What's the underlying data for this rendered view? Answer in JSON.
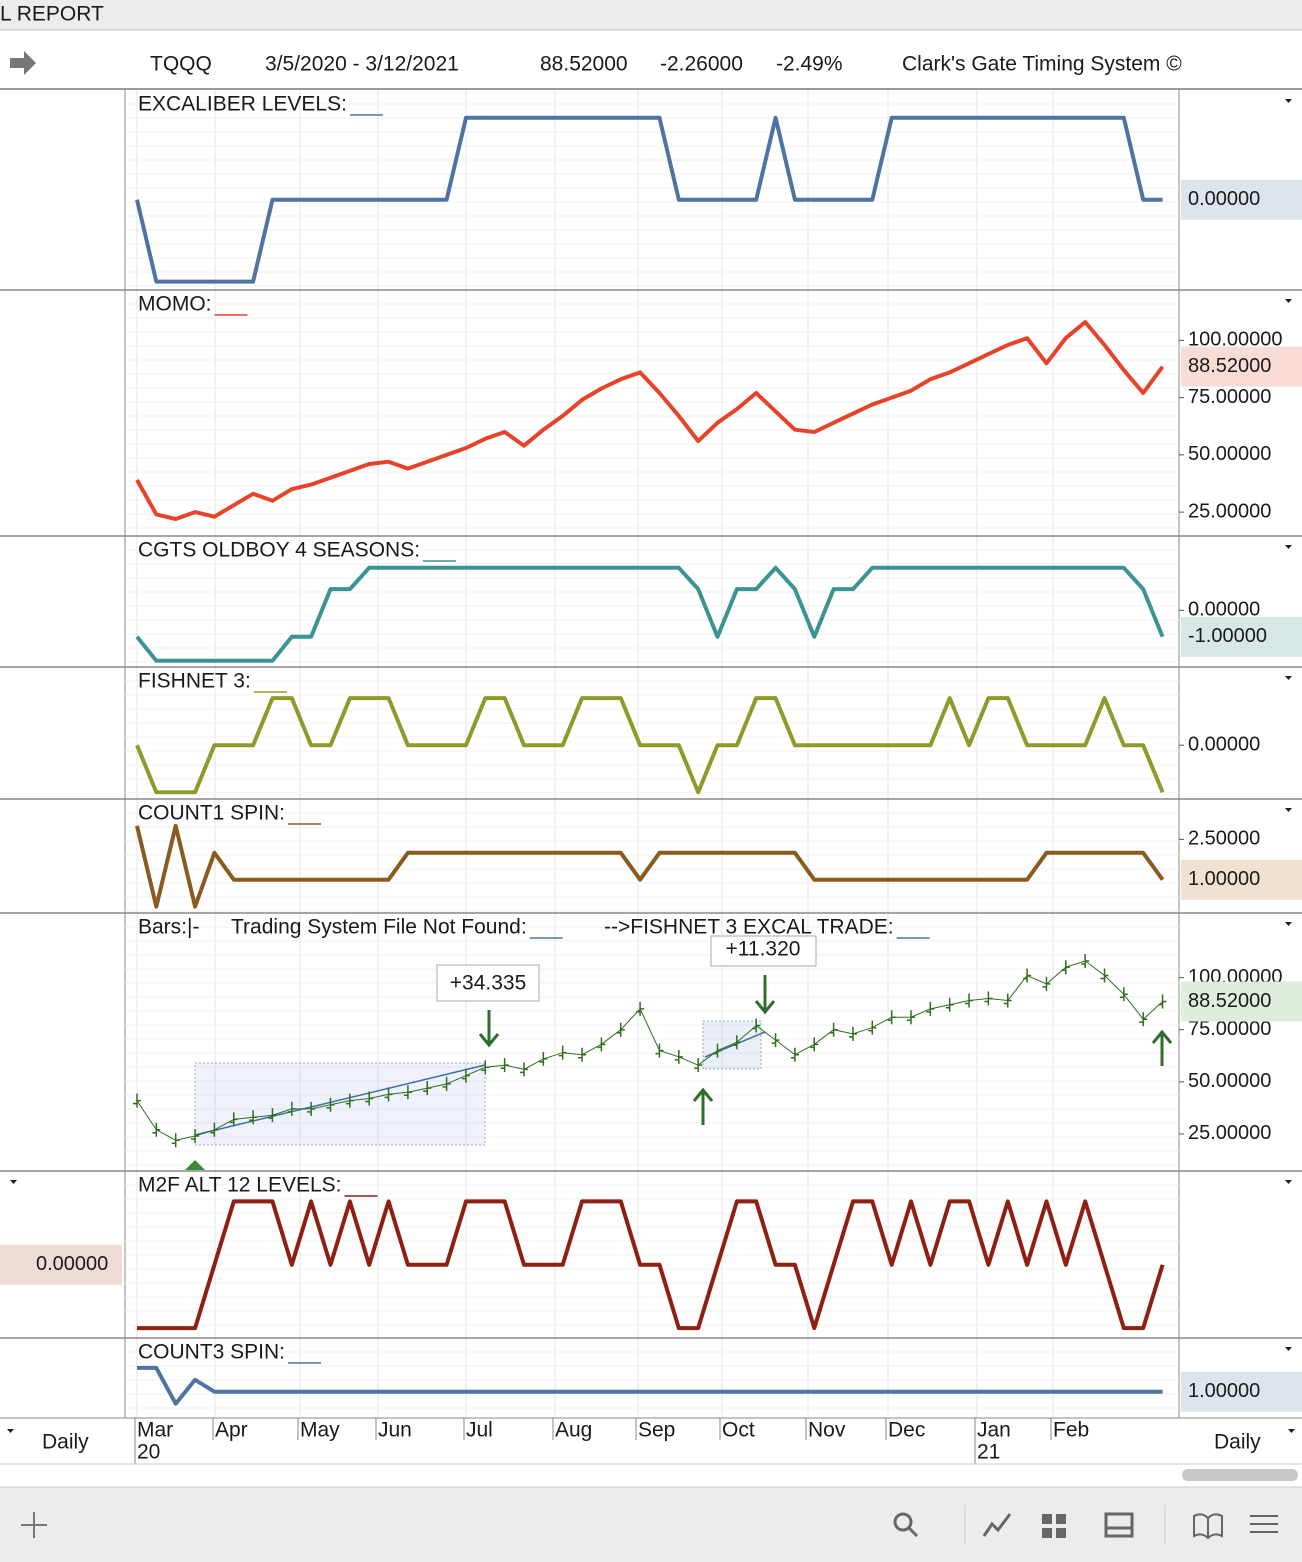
{
  "header": {
    "window_title": "L REPORT",
    "symbol": "TQQQ",
    "date_range": "3/5/2020 - 3/12/2021",
    "last": "88.52000",
    "change": "-2.26000",
    "change_pct": "-2.49%",
    "system": "Clark's Gate Timing System ©"
  },
  "panes": [
    {
      "titles": [
        "EXCALIBER LEVELS:"
      ],
      "color": "#4f74a3",
      "ylim": [
        -1.09,
        1.34
      ],
      "yticks": [],
      "badge": {
        "value": 0,
        "label": "0.00000"
      },
      "values": [
        0,
        -1,
        -1,
        -1,
        -1,
        -1,
        -1,
        0,
        0,
        0,
        0,
        0,
        0,
        0,
        0,
        0,
        0,
        1,
        1,
        1,
        1,
        1,
        1,
        1,
        1,
        1,
        1,
        1,
        0,
        0,
        0,
        0,
        0,
        1,
        0,
        0,
        0,
        0,
        0,
        1,
        1,
        1,
        1,
        1,
        1,
        1,
        1,
        1,
        1,
        1,
        1,
        1,
        0,
        0
      ]
    },
    {
      "titles": [
        "MOMO:"
      ],
      "color": "#e8432a",
      "ylim": [
        15,
        122
      ],
      "yticks": [
        {
          "value": 100,
          "label": "100.00000"
        },
        {
          "value": 75,
          "label": "75.00000"
        },
        {
          "value": 50,
          "label": "50.00000"
        },
        {
          "value": 25,
          "label": "25.00000"
        }
      ],
      "badge": {
        "value": 88.52,
        "label": "88.52000"
      },
      "values": [
        39,
        24,
        22,
        25,
        23,
        28,
        33,
        30,
        35,
        37,
        40,
        43,
        46,
        47,
        44,
        47,
        50,
        53,
        57,
        60,
        54,
        61,
        67,
        74,
        79,
        83,
        86,
        77,
        67,
        56,
        64,
        70,
        77,
        69,
        61,
        60,
        64,
        68,
        72,
        75,
        78,
        83,
        86,
        90,
        94,
        98,
        101,
        90,
        101,
        108,
        98,
        87,
        77,
        88.52
      ]
    },
    {
      "titles": [
        "CGTS OLDBOY 4 SEASONS:"
      ],
      "color": "#3b9494",
      "ylim": [
        -2.1,
        2.8
      ],
      "yticks": [
        {
          "value": 0,
          "label": "0.00000"
        }
      ],
      "badge": {
        "value": -1,
        "label": "-1.00000"
      },
      "values": [
        -1,
        -1.9,
        -1.9,
        -1.9,
        -1.9,
        -1.9,
        -1.9,
        -1.9,
        -1,
        -1,
        0.8,
        0.8,
        1.6,
        1.6,
        1.6,
        1.6,
        1.6,
        1.6,
        1.6,
        1.6,
        1.6,
        1.6,
        1.6,
        1.6,
        1.6,
        1.6,
        1.6,
        1.6,
        1.6,
        0.8,
        -1,
        0.8,
        0.8,
        1.6,
        0.8,
        -1,
        0.8,
        0.8,
        1.6,
        1.6,
        1.6,
        1.6,
        1.6,
        1.6,
        1.6,
        1.6,
        1.6,
        1.6,
        1.6,
        1.6,
        1.6,
        1.6,
        0.8,
        -1
      ]
    },
    {
      "titles": [
        "FISHNET 3:"
      ],
      "color": "#8f9a2a",
      "ylim": [
        -1.12,
        1.66
      ],
      "yticks": [
        {
          "value": 0,
          "label": "0.00000"
        }
      ],
      "values": [
        0,
        -1,
        -1,
        -1,
        0,
        0,
        0,
        1,
        1,
        0,
        0,
        1,
        1,
        1,
        0,
        0,
        0,
        0,
        1,
        1,
        0,
        0,
        0,
        1,
        1,
        1,
        0,
        0,
        0,
        -1,
        0,
        0,
        1,
        1,
        0,
        0,
        0,
        0,
        0,
        0,
        0,
        0,
        1,
        0,
        1,
        1,
        0,
        0,
        0,
        0,
        1,
        0,
        0,
        -1
      ]
    },
    {
      "titles": [
        "COUNT1 SPIN:"
      ],
      "color": "#8b5a1e",
      "ylim": [
        -0.2,
        4.0
      ],
      "yticks": [
        {
          "value": 2.5,
          "label": "2.50000"
        }
      ],
      "badge": {
        "value": 1,
        "label": "1.00000"
      },
      "values": [
        3,
        0,
        3,
        0,
        2,
        1,
        1,
        1,
        1,
        1,
        1,
        1,
        1,
        1,
        2,
        2,
        2,
        2,
        2,
        2,
        2,
        2,
        2,
        2,
        2,
        2,
        1,
        2,
        2,
        2,
        2,
        2,
        2,
        2,
        2,
        1,
        1,
        1,
        1,
        1,
        1,
        1,
        1,
        1,
        1,
        1,
        1,
        2,
        2,
        2,
        2,
        2,
        2,
        1
      ]
    },
    {
      "titles": [
        "Bars:|-",
        "Trading System File Not Found:",
        "-->FISHNET 3 EXCAL TRADE:"
      ],
      "type": "bars",
      "color": "#2e6e1e",
      "ylim": [
        7.7,
        131
      ],
      "yticks": [
        {
          "value": 100,
          "label": "100.00000"
        },
        {
          "value": 75,
          "label": "75.00000"
        },
        {
          "value": 50,
          "label": "50.00000"
        },
        {
          "value": 25,
          "label": "25.00000"
        }
      ],
      "badge": {
        "value": 88.52,
        "label": "88.52000"
      },
      "annotations": [
        "+34.335",
        "+11.320"
      ],
      "values": [
        41,
        27,
        22,
        24,
        27,
        32,
        33,
        34,
        37,
        37,
        39,
        41,
        42,
        44,
        45,
        47,
        49,
        53,
        57,
        58,
        56,
        61,
        64,
        63,
        68,
        75,
        85,
        65,
        62,
        58,
        65,
        69,
        77,
        70,
        63,
        68,
        75,
        73,
        76,
        81,
        81,
        85,
        87,
        89,
        90,
        89,
        101,
        97,
        105,
        108,
        101,
        92,
        80,
        88.52
      ]
    },
    {
      "titles": [
        "M2F ALT 12 LEVELS:"
      ],
      "color": "#8f1f10",
      "ylim": [
        -1.14,
        1.48
      ],
      "yticks": [],
      "badge": {
        "value": 0,
        "label": "0.00000"
      },
      "badge_side": "left",
      "values": [
        -1,
        -1,
        -1,
        -1,
        0,
        1,
        1,
        1,
        0,
        1,
        0,
        1,
        0,
        1,
        0,
        0,
        0,
        1,
        1,
        1,
        0,
        0,
        0,
        1,
        1,
        1,
        0,
        0,
        -1,
        -1,
        0,
        1,
        1,
        0,
        0,
        -1,
        0,
        1,
        1,
        0,
        1,
        0,
        1,
        1,
        0,
        1,
        0,
        1,
        0,
        1,
        0,
        -1,
        -1,
        0
      ]
    },
    {
      "titles": [
        "COUNT3 SPIN:"
      ],
      "color": "#4f74a3",
      "ylim": [
        -0.1,
        3.25
      ],
      "yticks": [],
      "badge": {
        "value": 1,
        "label": "1.00000"
      },
      "values": [
        2,
        2,
        0.5,
        1.5,
        1,
        1,
        1,
        1,
        1,
        1,
        1,
        1,
        1,
        1,
        1,
        1,
        1,
        1,
        1,
        1,
        1,
        1,
        1,
        1,
        1,
        1,
        1,
        1,
        1,
        1,
        1,
        1,
        1,
        1,
        1,
        1,
        1,
        1,
        1,
        1,
        1,
        1,
        1,
        1,
        1,
        1,
        1,
        1,
        1,
        1,
        1,
        1,
        1,
        1
      ]
    }
  ],
  "x_axis": {
    "months": [
      "Mar",
      "Apr",
      "May",
      "Jun",
      "Jul",
      "Aug",
      "Sep",
      "Oct",
      "Nov",
      "Dec",
      "Jan",
      "Feb"
    ],
    "years": [
      "20",
      "21"
    ],
    "period": "Daily"
  }
}
